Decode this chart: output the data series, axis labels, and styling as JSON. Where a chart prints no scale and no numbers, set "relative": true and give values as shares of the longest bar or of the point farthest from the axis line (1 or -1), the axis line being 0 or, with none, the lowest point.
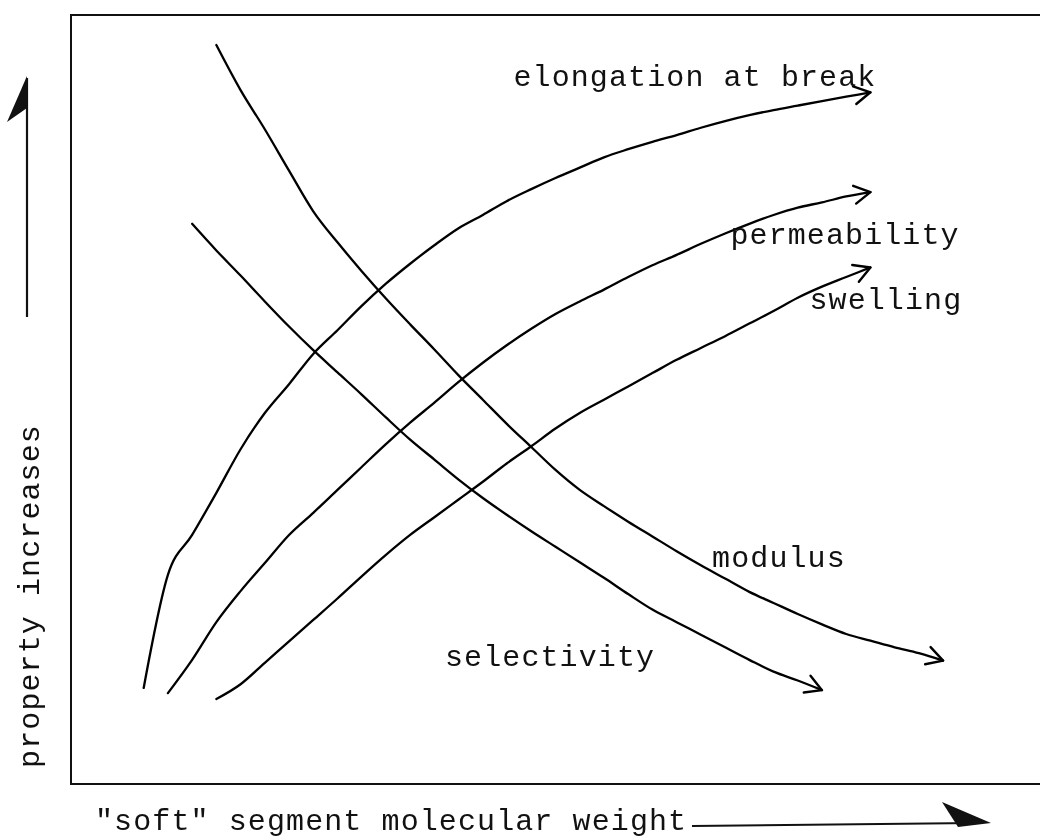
{
  "chart_data": {
    "type": "line",
    "relative": true,
    "xlabel": "\"soft\" segment molecular weight",
    "ylabel": "property increases",
    "categories": [
      null,
      null,
      null,
      null,
      null,
      null,
      null,
      null,
      null,
      null,
      null,
      null,
      null,
      null,
      null,
      null,
      null,
      null,
      null,
      null,
      null,
      null,
      null,
      null,
      null,
      null,
      null,
      null,
      null,
      null,
      null,
      null,
      null,
      null,
      null,
      null,
      null,
      null,
      null,
      null,
      null
    ],
    "series": [
      {
        "name": "elongation at break",
        "color": "#000000",
        "values": [
          null,
          null,
          null,
          0.13,
          0.283,
          0.337,
          0.394,
          0.453,
          0.502,
          0.541,
          0.582,
          0.614,
          0.647,
          0.677,
          0.704,
          0.729,
          0.752,
          0.77,
          0.789,
          0.805,
          0.82,
          0.834,
          0.848,
          0.859,
          0.869,
          0.878,
          0.888,
          0.897,
          0.905,
          0.912,
          0.918,
          0.924,
          0.93,
          0.936,
          null,
          null,
          null,
          null,
          null,
          null,
          null
        ]
      },
      {
        "name": "permeability",
        "color": "#000000",
        "values": [
          null,
          null,
          null,
          null,
          0.123,
          0.168,
          0.219,
          0.261,
          0.299,
          0.337,
          0.367,
          0.398,
          0.429,
          0.46,
          0.489,
          0.516,
          0.544,
          0.57,
          0.594,
          0.616,
          0.636,
          0.653,
          0.669,
          0.686,
          0.702,
          0.716,
          0.731,
          0.745,
          0.758,
          0.77,
          0.78,
          0.787,
          0.795,
          0.801,
          null,
          null,
          null,
          null,
          null,
          null,
          null
        ]
      },
      {
        "name": "swelling",
        "color": "#000000",
        "values": [
          null,
          null,
          null,
          null,
          null,
          null,
          0.115,
          0.135,
          0.164,
          0.193,
          0.222,
          0.251,
          0.281,
          0.31,
          0.337,
          0.361,
          0.385,
          0.409,
          0.434,
          0.457,
          0.481,
          0.502,
          0.52,
          0.538,
          0.556,
          0.574,
          0.59,
          0.606,
          0.623,
          0.64,
          0.658,
          0.673,
          0.686,
          0.699,
          null,
          null,
          null,
          null,
          null,
          null,
          null
        ]
      },
      {
        "name": "modulus",
        "color": "#000000",
        "values": [
          null,
          null,
          null,
          null,
          null,
          null,
          1,
          0.939,
          0.886,
          0.83,
          0.775,
          0.733,
          0.694,
          0.657,
          0.622,
          0.588,
          0.553,
          0.52,
          0.487,
          0.456,
          0.425,
          0.398,
          0.376,
          0.355,
          0.335,
          0.315,
          0.296,
          0.278,
          0.26,
          0.245,
          0.23,
          0.216,
          0.203,
          0.194,
          0.185,
          0.177,
          0.167,
          null,
          null,
          null,
          null
        ]
      },
      {
        "name": "selectivity",
        "color": "#000000",
        "values": [
          null,
          null,
          null,
          null,
          null,
          0.758,
          0.722,
          0.688,
          0.653,
          0.619,
          0.587,
          0.557,
          0.527,
          0.496,
          0.466,
          0.439,
          0.412,
          0.387,
          0.364,
          0.342,
          0.321,
          0.3,
          0.279,
          0.257,
          0.236,
          0.219,
          0.202,
          0.185,
          0.168,
          0.152,
          0.14,
          0.127,
          null,
          null,
          null,
          null,
          null,
          null,
          null,
          null,
          null
        ]
      }
    ]
  }
}
